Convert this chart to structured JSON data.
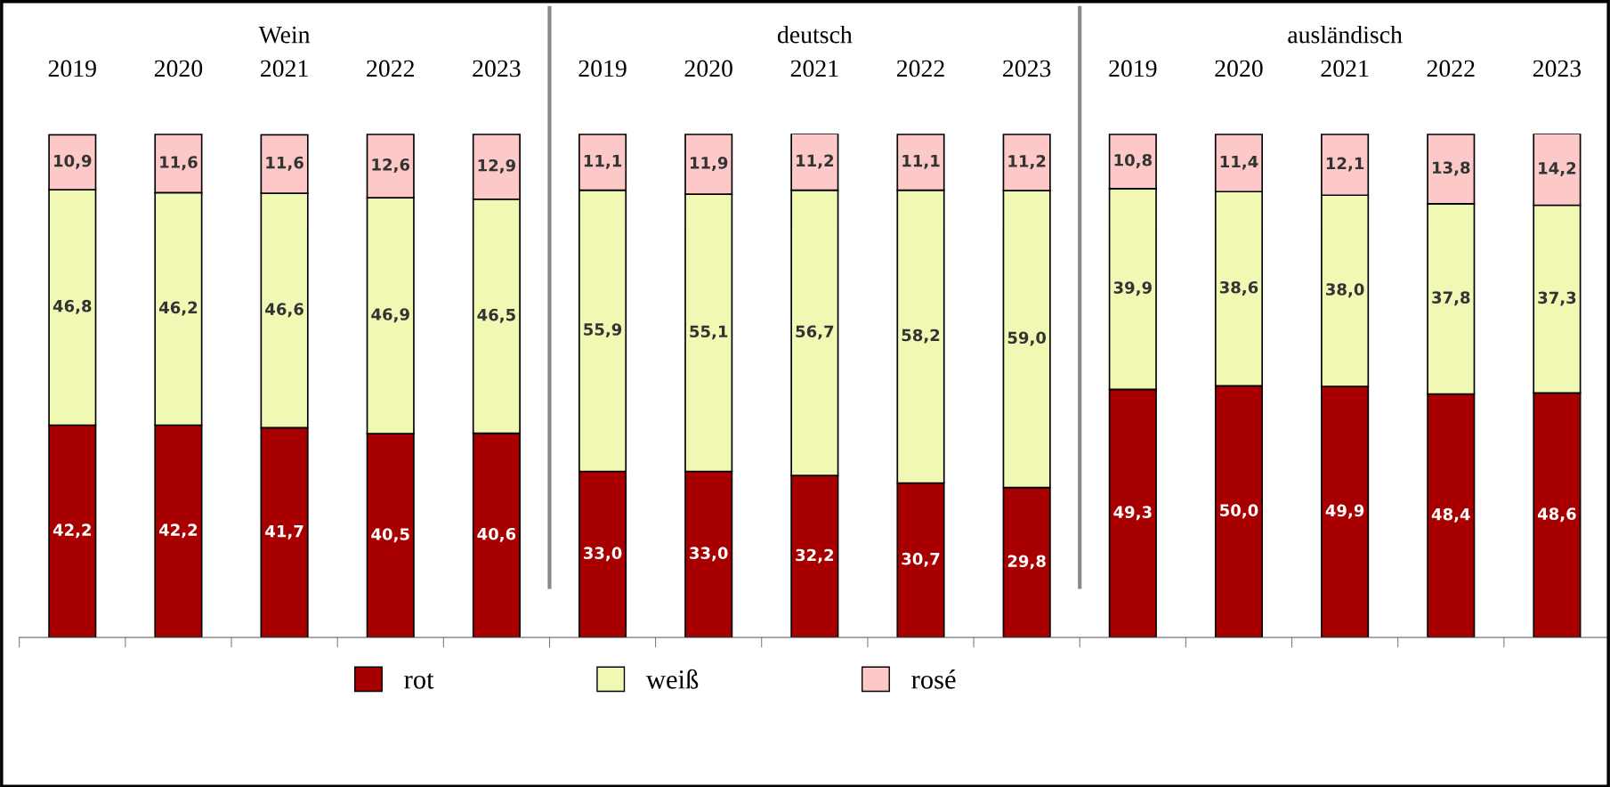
{
  "chart_data": {
    "type": "bar",
    "stacked": true,
    "categories": [
      "2019",
      "2020",
      "2021",
      "2022",
      "2023",
      "2019",
      "2020",
      "2021",
      "2022",
      "2023",
      "2019",
      "2020",
      "2021",
      "2022",
      "2023"
    ],
    "annotations": [
      "Wein",
      "deutsch",
      "ausländisch"
    ],
    "series": [
      {
        "name": "rot",
        "color": "#a80000",
        "values": [
          42.2,
          42.2,
          41.7,
          40.5,
          40.6,
          33.0,
          33.0,
          32.2,
          30.7,
          29.8,
          49.3,
          50.0,
          49.9,
          48.4,
          48.6
        ],
        "value_labels": [
          "42,2",
          "42,2",
          "41,7",
          "40,5",
          "40,6",
          "33,0",
          "33,0",
          "32,2",
          "30,7",
          "29,8",
          "49,3",
          "50,0",
          "49,9",
          "48,4",
          "48,6"
        ]
      },
      {
        "name": "weiß",
        "color": "#f0f8b4",
        "values": [
          46.8,
          46.2,
          46.6,
          46.9,
          46.5,
          55.9,
          55.1,
          56.7,
          58.2,
          59.0,
          39.9,
          38.6,
          38.0,
          37.8,
          37.3
        ],
        "value_labels": [
          "46,8",
          "46,2",
          "46,6",
          "46,9",
          "46,5",
          "55,9",
          "55,1",
          "56,7",
          "58,2",
          "59,0",
          "39,9",
          "38,6",
          "38,0",
          "37,8",
          "37,3"
        ]
      },
      {
        "name": "rosé",
        "color": "#fcc8c8",
        "values": [
          10.9,
          11.6,
          11.6,
          12.6,
          12.9,
          11.1,
          11.9,
          11.2,
          11.1,
          11.2,
          10.8,
          11.4,
          12.1,
          13.8,
          14.2
        ],
        "value_labels": [
          "10,9",
          "11,6",
          "11,6",
          "12,6",
          "12,9",
          "11,1",
          "11,9",
          "11,2",
          "11,1",
          "11,2",
          "10,8",
          "11,4",
          "12,1",
          "13,8",
          "14,2"
        ]
      }
    ],
    "legend": "bottom",
    "grid": false
  }
}
